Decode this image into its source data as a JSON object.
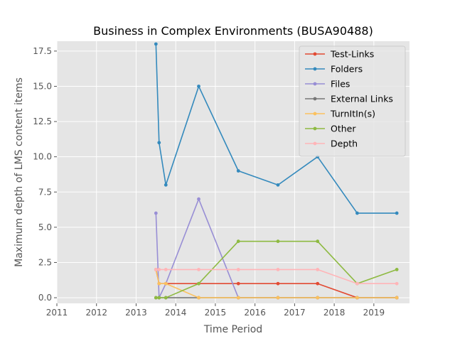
{
  "chart_data": {
    "type": "line",
    "title": "Business in Complex Environments (BUSA90488)",
    "xlabel": "Time Period",
    "ylabel": "Maximum depth of LMS content items",
    "xlim": [
      2011,
      2019.9
    ],
    "ylim": [
      -0.4,
      18.2
    ],
    "xticks": [
      2011,
      2012,
      2013,
      2014,
      2015,
      2016,
      2017,
      2018,
      2019
    ],
    "xtick_labels": [
      "2011",
      "2012",
      "2013",
      "2014",
      "2015",
      "2016",
      "2017",
      "2018",
      "2019"
    ],
    "yticks": [
      0,
      2.5,
      5,
      7.5,
      10,
      12.5,
      15,
      17.5
    ],
    "ytick_labels": [
      "0.0",
      "2.5",
      "5.0",
      "7.5",
      "10.0",
      "12.5",
      "15.0",
      "17.5"
    ],
    "grid": true,
    "legend_position": "top-right",
    "x": [
      2013.5,
      2013.58,
      2013.75,
      2014.58,
      2015.58,
      2016.58,
      2017.58,
      2018.58,
      2019.58
    ],
    "series": [
      {
        "name": "Test-Links",
        "color": "#E24A33",
        "values": [
          2,
          1,
          1,
          1,
          1,
          1,
          1,
          0,
          0
        ]
      },
      {
        "name": "Folders",
        "color": "#348ABD",
        "values": [
          18,
          11,
          8,
          15,
          9,
          8,
          10,
          6,
          6
        ]
      },
      {
        "name": "Files",
        "color": "#988ED5",
        "values": [
          6,
          0,
          1,
          7,
          0,
          0,
          0,
          0,
          0
        ]
      },
      {
        "name": "External Links",
        "color": "#777777",
        "values": [
          0,
          0,
          0,
          0,
          0,
          0,
          0,
          0,
          0
        ]
      },
      {
        "name": "TurnItIn(s)",
        "color": "#FBC15E",
        "values": [
          2,
          1,
          1,
          0,
          0,
          0,
          0,
          0,
          0
        ]
      },
      {
        "name": "Other",
        "color": "#8EBA42",
        "values": [
          0,
          0,
          0,
          1,
          4,
          4,
          4,
          1,
          2
        ]
      },
      {
        "name": "Depth",
        "color": "#FFB5B8",
        "values": [
          2,
          2,
          2,
          2,
          2,
          2,
          2,
          1,
          1
        ]
      }
    ]
  }
}
